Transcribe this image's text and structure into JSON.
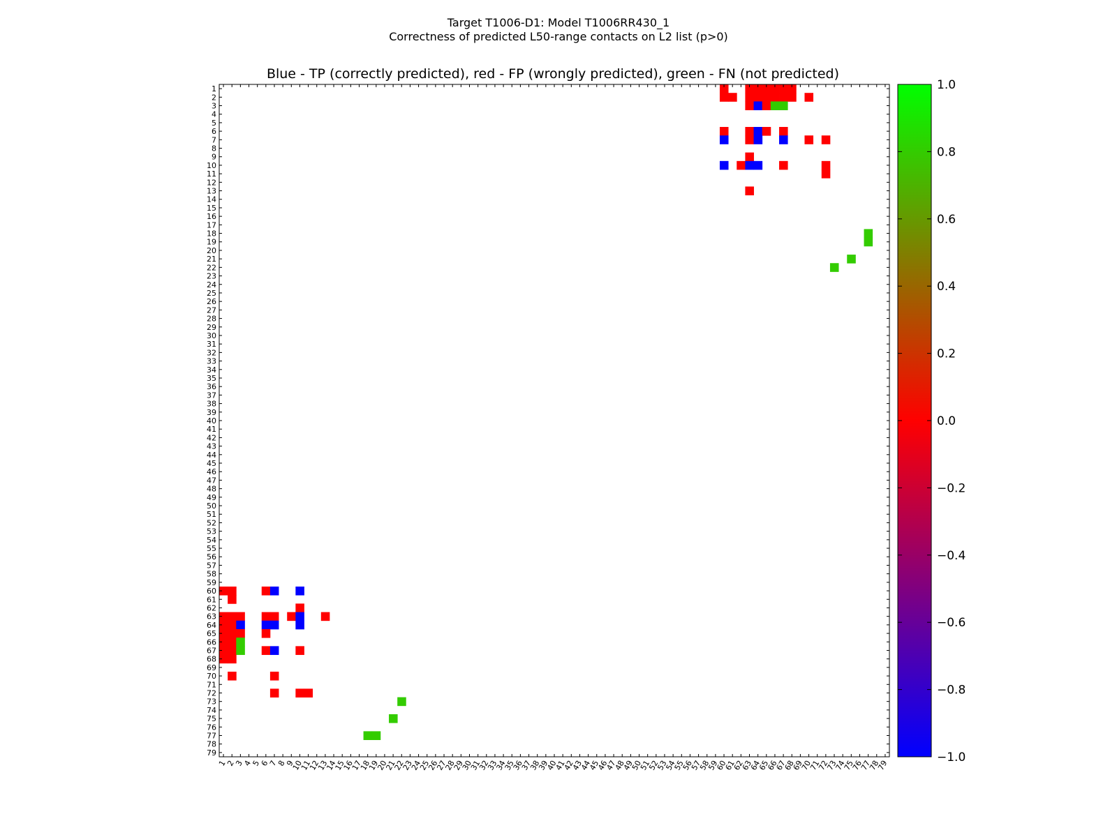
{
  "chart_data": {
    "type": "heatmap",
    "title_line1": "Target T1006-D1: Model T1006RR430_1",
    "title_line2": "Correctness of predicted L50-range contacts on L2 list (p>0)",
    "subtitle": "Blue - TP (correctly predicted), red - FP (wrongly predicted), green - FN (not predicted)",
    "xlabel": "",
    "ylabel": "",
    "size": 79,
    "x_range": [
      1,
      79
    ],
    "y_range": [
      1,
      79
    ],
    "y_axis": "inverted",
    "grid": false,
    "categories": {
      "tp": {
        "label": "TP (correctly predicted)",
        "value": -1.0,
        "color": "#0000ff"
      },
      "fp": {
        "label": "FP (wrongly predicted)",
        "value": 0.0,
        "color": "#ff0000"
      },
      "fn": {
        "label": "FN (not predicted)",
        "value": 0.8,
        "color": "#33cc00"
      }
    },
    "cells": [
      {
        "row": 1,
        "col": 60,
        "cat": "fp"
      },
      {
        "row": 1,
        "col": 63,
        "cat": "fp"
      },
      {
        "row": 1,
        "col": 64,
        "cat": "fp"
      },
      {
        "row": 1,
        "col": 65,
        "cat": "fp"
      },
      {
        "row": 1,
        "col": 66,
        "cat": "fp"
      },
      {
        "row": 1,
        "col": 67,
        "cat": "fp"
      },
      {
        "row": 1,
        "col": 68,
        "cat": "fp"
      },
      {
        "row": 2,
        "col": 60,
        "cat": "fp"
      },
      {
        "row": 2,
        "col": 61,
        "cat": "fp"
      },
      {
        "row": 2,
        "col": 63,
        "cat": "fp"
      },
      {
        "row": 2,
        "col": 64,
        "cat": "fp"
      },
      {
        "row": 2,
        "col": 65,
        "cat": "fp"
      },
      {
        "row": 2,
        "col": 66,
        "cat": "fp"
      },
      {
        "row": 2,
        "col": 67,
        "cat": "fp"
      },
      {
        "row": 2,
        "col": 68,
        "cat": "fp"
      },
      {
        "row": 2,
        "col": 70,
        "cat": "fp"
      },
      {
        "row": 3,
        "col": 63,
        "cat": "fp"
      },
      {
        "row": 3,
        "col": 64,
        "cat": "tp"
      },
      {
        "row": 3,
        "col": 65,
        "cat": "fp"
      },
      {
        "row": 3,
        "col": 66,
        "cat": "fn"
      },
      {
        "row": 3,
        "col": 67,
        "cat": "fn"
      },
      {
        "row": 6,
        "col": 60,
        "cat": "fp"
      },
      {
        "row": 6,
        "col": 63,
        "cat": "fp"
      },
      {
        "row": 6,
        "col": 64,
        "cat": "tp"
      },
      {
        "row": 6,
        "col": 65,
        "cat": "fp"
      },
      {
        "row": 6,
        "col": 67,
        "cat": "fp"
      },
      {
        "row": 7,
        "col": 60,
        "cat": "tp"
      },
      {
        "row": 7,
        "col": 63,
        "cat": "fp"
      },
      {
        "row": 7,
        "col": 64,
        "cat": "tp"
      },
      {
        "row": 7,
        "col": 67,
        "cat": "tp"
      },
      {
        "row": 7,
        "col": 70,
        "cat": "fp"
      },
      {
        "row": 7,
        "col": 72,
        "cat": "fp"
      },
      {
        "row": 9,
        "col": 63,
        "cat": "fp"
      },
      {
        "row": 10,
        "col": 60,
        "cat": "tp"
      },
      {
        "row": 10,
        "col": 62,
        "cat": "fp"
      },
      {
        "row": 10,
        "col": 63,
        "cat": "tp"
      },
      {
        "row": 10,
        "col": 64,
        "cat": "tp"
      },
      {
        "row": 10,
        "col": 67,
        "cat": "fp"
      },
      {
        "row": 10,
        "col": 72,
        "cat": "fp"
      },
      {
        "row": 11,
        "col": 72,
        "cat": "fp"
      },
      {
        "row": 13,
        "col": 63,
        "cat": "fp"
      },
      {
        "row": 18,
        "col": 77,
        "cat": "fn"
      },
      {
        "row": 19,
        "col": 77,
        "cat": "fn"
      },
      {
        "row": 21,
        "col": 75,
        "cat": "fn"
      },
      {
        "row": 22,
        "col": 73,
        "cat": "fn"
      },
      {
        "row": 60,
        "col": 1,
        "cat": "fp"
      },
      {
        "row": 60,
        "col": 2,
        "cat": "fp"
      },
      {
        "row": 60,
        "col": 6,
        "cat": "fp"
      },
      {
        "row": 60,
        "col": 7,
        "cat": "tp"
      },
      {
        "row": 60,
        "col": 10,
        "cat": "tp"
      },
      {
        "row": 61,
        "col": 2,
        "cat": "fp"
      },
      {
        "row": 62,
        "col": 10,
        "cat": "fp"
      },
      {
        "row": 63,
        "col": 1,
        "cat": "fp"
      },
      {
        "row": 63,
        "col": 2,
        "cat": "fp"
      },
      {
        "row": 63,
        "col": 3,
        "cat": "fp"
      },
      {
        "row": 63,
        "col": 6,
        "cat": "fp"
      },
      {
        "row": 63,
        "col": 7,
        "cat": "fp"
      },
      {
        "row": 63,
        "col": 9,
        "cat": "fp"
      },
      {
        "row": 63,
        "col": 10,
        "cat": "tp"
      },
      {
        "row": 63,
        "col": 13,
        "cat": "fp"
      },
      {
        "row": 64,
        "col": 1,
        "cat": "fp"
      },
      {
        "row": 64,
        "col": 2,
        "cat": "fp"
      },
      {
        "row": 64,
        "col": 3,
        "cat": "tp"
      },
      {
        "row": 64,
        "col": 6,
        "cat": "tp"
      },
      {
        "row": 64,
        "col": 7,
        "cat": "tp"
      },
      {
        "row": 64,
        "col": 10,
        "cat": "tp"
      },
      {
        "row": 65,
        "col": 1,
        "cat": "fp"
      },
      {
        "row": 65,
        "col": 2,
        "cat": "fp"
      },
      {
        "row": 65,
        "col": 3,
        "cat": "fp"
      },
      {
        "row": 65,
        "col": 6,
        "cat": "fp"
      },
      {
        "row": 66,
        "col": 1,
        "cat": "fp"
      },
      {
        "row": 66,
        "col": 2,
        "cat": "fp"
      },
      {
        "row": 66,
        "col": 3,
        "cat": "fn"
      },
      {
        "row": 67,
        "col": 1,
        "cat": "fp"
      },
      {
        "row": 67,
        "col": 2,
        "cat": "fp"
      },
      {
        "row": 67,
        "col": 3,
        "cat": "fn"
      },
      {
        "row": 67,
        "col": 6,
        "cat": "fp"
      },
      {
        "row": 67,
        "col": 7,
        "cat": "tp"
      },
      {
        "row": 67,
        "col": 10,
        "cat": "fp"
      },
      {
        "row": 68,
        "col": 1,
        "cat": "fp"
      },
      {
        "row": 68,
        "col": 2,
        "cat": "fp"
      },
      {
        "row": 70,
        "col": 2,
        "cat": "fp"
      },
      {
        "row": 70,
        "col": 7,
        "cat": "fp"
      },
      {
        "row": 72,
        "col": 7,
        "cat": "fp"
      },
      {
        "row": 72,
        "col": 10,
        "cat": "fp"
      },
      {
        "row": 72,
        "col": 11,
        "cat": "fp"
      },
      {
        "row": 73,
        "col": 22,
        "cat": "fn"
      },
      {
        "row": 75,
        "col": 21,
        "cat": "fn"
      },
      {
        "row": 77,
        "col": 18,
        "cat": "fn"
      },
      {
        "row": 77,
        "col": 19,
        "cat": "fn"
      }
    ],
    "colorbar": {
      "min": -1.0,
      "max": 1.0,
      "ticks": [
        "1.0",
        "0.8",
        "0.6",
        "0.4",
        "0.2",
        "0.0",
        "−0.2",
        "−0.4",
        "−0.6",
        "−0.8",
        "−1.0"
      ],
      "tick_values": [
        1.0,
        0.8,
        0.6,
        0.4,
        0.2,
        0.0,
        -0.2,
        -0.4,
        -0.6,
        -0.8,
        -1.0
      ],
      "stops": [
        {
          "value": -1.0,
          "color": "#0000ff"
        },
        {
          "value": 0.0,
          "color": "#ff0000"
        },
        {
          "value": 1.0,
          "color": "#00ff00"
        }
      ]
    }
  }
}
